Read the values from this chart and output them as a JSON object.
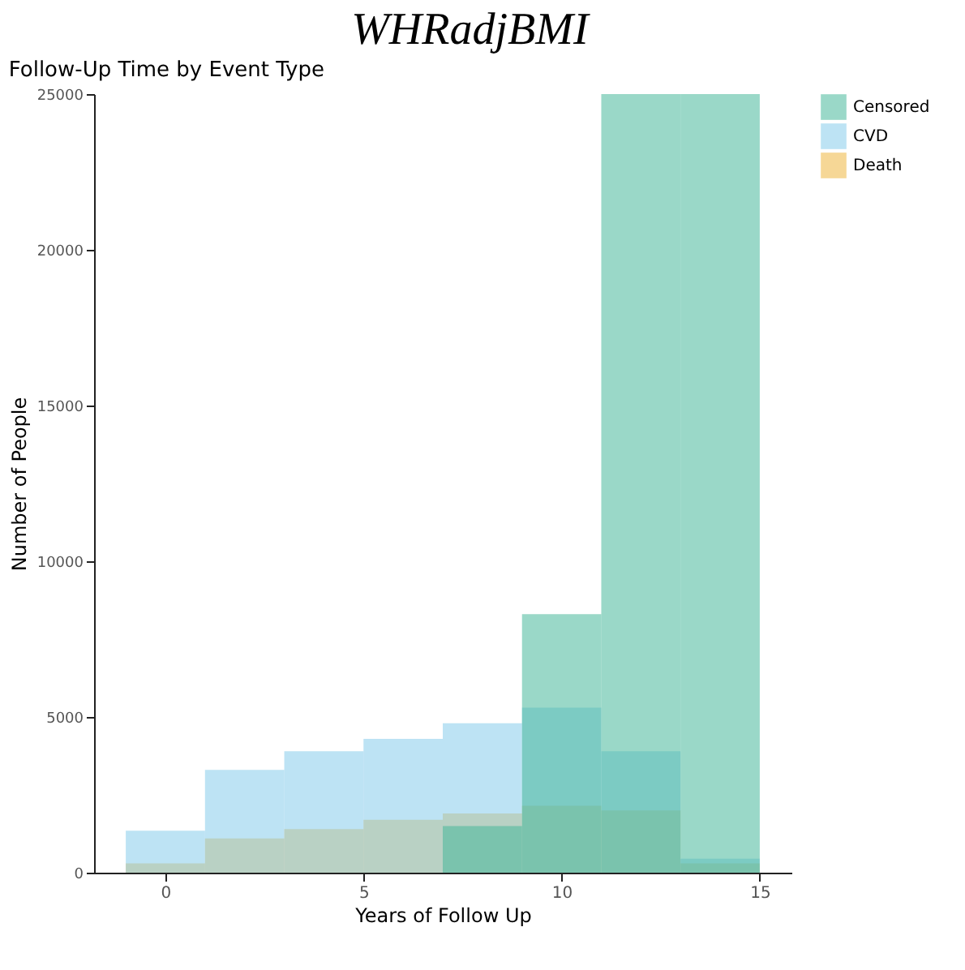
{
  "chart_data": {
    "type": "histogram",
    "title": "WHRadjBMI",
    "subtitle": "Follow-Up Time by Event Type",
    "xlabel": "Years of Follow Up",
    "ylabel": "Number of People",
    "bins": [
      -1,
      1,
      3,
      5,
      7,
      9,
      11,
      13,
      15
    ],
    "series": [
      {
        "name": "Censored",
        "color": "#9ad8c8",
        "values": [
          0,
          0,
          0,
          0,
          1500,
          8300,
          25000,
          25000
        ]
      },
      {
        "name": "CVD",
        "color": "#bde3f4",
        "values": [
          1350,
          3300,
          3900,
          4300,
          4800,
          5300,
          3900,
          450
        ]
      },
      {
        "name": "Death",
        "color": "#f6d796",
        "values": [
          300,
          1100,
          1400,
          1700,
          1900,
          2150,
          2000,
          300
        ]
      }
    ],
    "xlim": [
      -1.8,
      15.8
    ],
    "xticks": [
      0,
      5,
      10,
      15
    ],
    "ylim": [
      0,
      25000
    ],
    "yticks": [
      0,
      5000,
      10000,
      15000,
      20000,
      25000
    ],
    "grid": false,
    "legend": "right"
  }
}
